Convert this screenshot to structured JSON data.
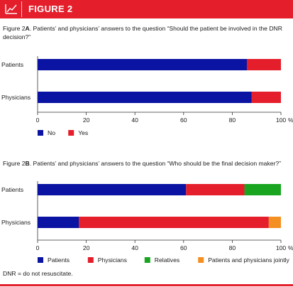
{
  "header": {
    "label": "FIGURE 2",
    "icon": "chart-line-icon"
  },
  "colors": {
    "brand": "#e41e2b",
    "blue": "#0b13a3",
    "red": "#e41e2b",
    "green": "#19a51f",
    "orange": "#f49022"
  },
  "chart_data": [
    {
      "type": "bar",
      "orientation": "horizontal",
      "stacked": true,
      "caption_prefix": "Figure 2",
      "caption_letter": "A",
      "caption_text": ". Patients’ and physicians’ answers to the question “Should the patient be involved in the DNR decision?”",
      "categories": [
        "Patients",
        "Physicians"
      ],
      "series": [
        {
          "name": "No",
          "color": "#0b13a3",
          "values": [
            86,
            88
          ]
        },
        {
          "name": "Yes",
          "color": "#e41e2b",
          "values": [
            14,
            12
          ]
        }
      ],
      "xlim": [
        0,
        100
      ],
      "xticks": [
        "0",
        "20",
        "40",
        "60",
        "80",
        "100"
      ],
      "unit": "%",
      "legend_placement": "bottom-left",
      "grid": false
    },
    {
      "type": "bar",
      "orientation": "horizontal",
      "stacked": true,
      "caption_prefix": "Figure 2",
      "caption_letter": "B",
      "caption_text": ". Patients’ and physicians’ answers to the question “Who should be the final decision maker?”",
      "categories": [
        "Patients",
        "Physicians"
      ],
      "series": [
        {
          "name": "Patients",
          "color": "#0b13a3",
          "values": [
            61,
            17
          ]
        },
        {
          "name": "Physicians",
          "color": "#e41e2b",
          "values": [
            24,
            78
          ]
        },
        {
          "name": "Relatives",
          "color": "#19a51f",
          "values": [
            15,
            0
          ]
        },
        {
          "name": "Patients and physicians jointly",
          "color": "#f49022",
          "values": [
            0,
            5
          ]
        }
      ],
      "xlim": [
        0,
        100
      ],
      "xticks": [
        "0",
        "20",
        "40",
        "60",
        "80",
        "100"
      ],
      "unit": "%",
      "legend_placement": "bottom-left",
      "grid": false
    }
  ],
  "footnote": "DNR = do not resuscitate."
}
